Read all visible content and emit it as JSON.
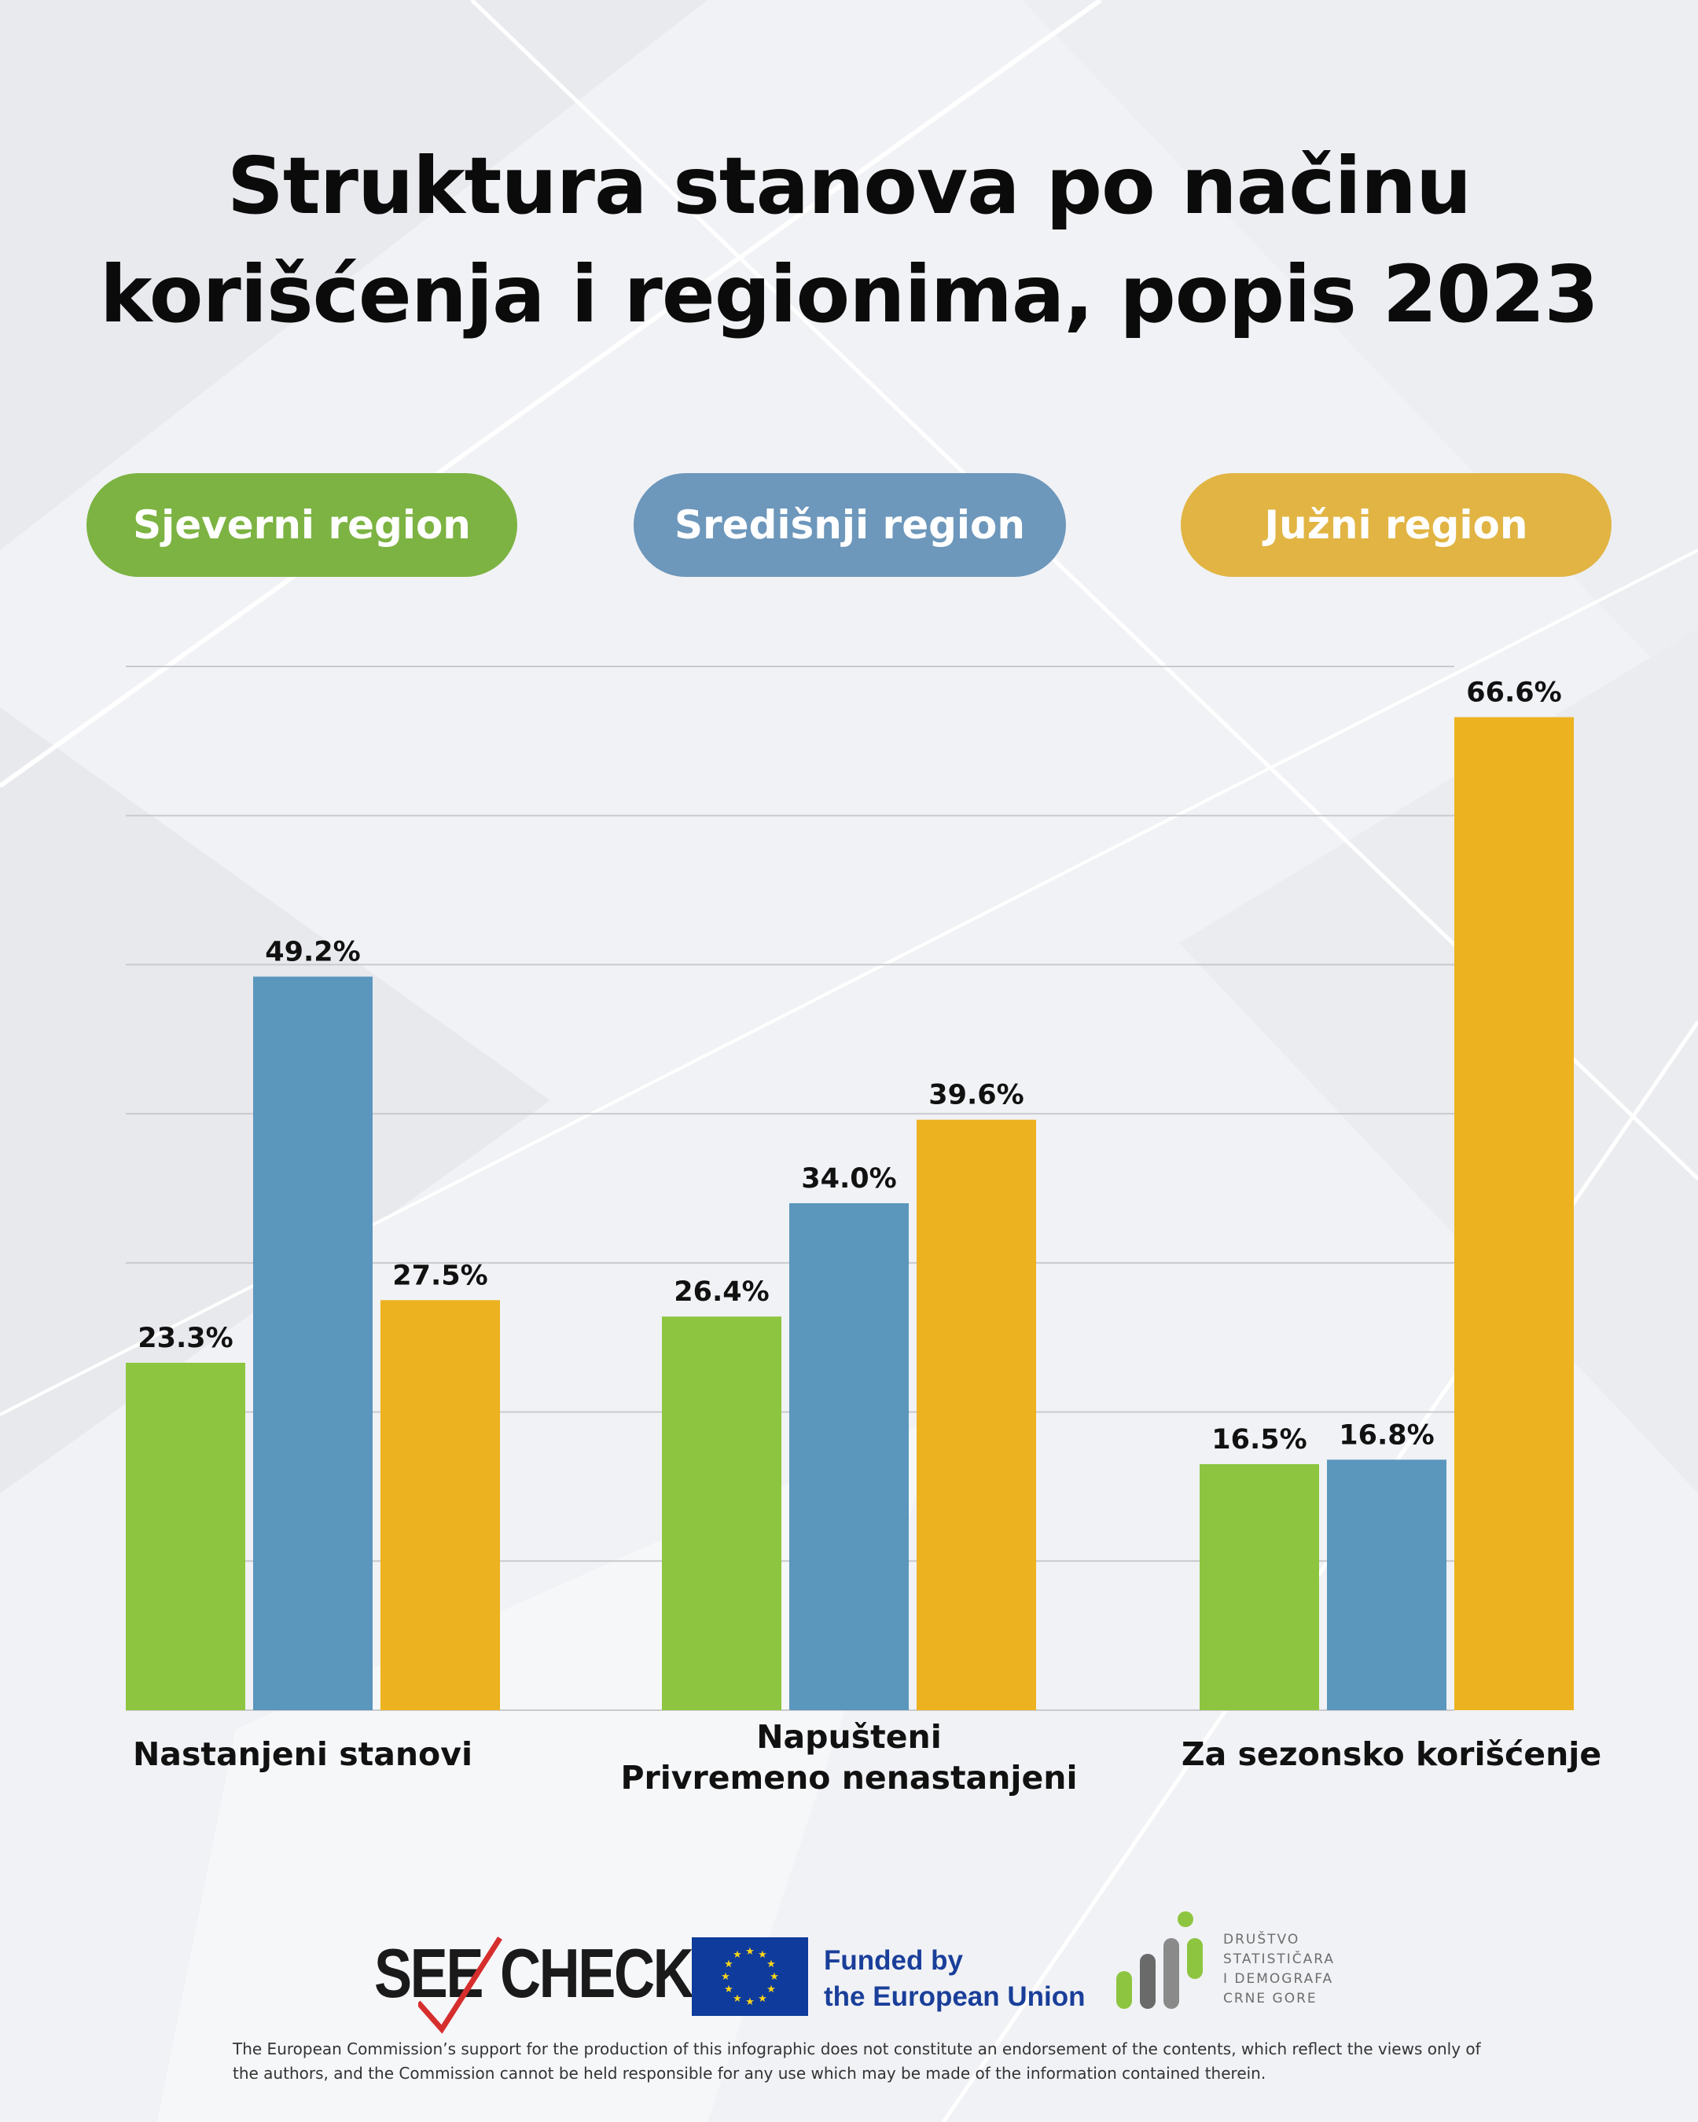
{
  "title": {
    "line1": "Struktura stanova po načinu",
    "line2": "korišćenja i regionima, popis 2023"
  },
  "legend": [
    {
      "label": "Sjeverni region",
      "color": "#7cb342"
    },
    {
      "label": "Središnji region",
      "color": "#6d97bb"
    },
    {
      "label": "Južni region",
      "color": "#e1b443"
    }
  ],
  "chart_data": {
    "type": "bar",
    "categories": [
      "Nastanjeni stanovi",
      "Napušteni\nPrivremeno nenastanjeni",
      "Za sezonsko korišćenje"
    ],
    "category_lines": [
      [
        "Nastanjeni stanovi"
      ],
      [
        "Napušteni",
        "Privremeno nenastanjeni"
      ],
      [
        "Za sezonsko korišćenje"
      ]
    ],
    "series": [
      {
        "name": "Sjeverni region",
        "color": "#8dc540",
        "values": [
          23.3,
          26.4,
          16.5
        ],
        "labels": [
          "23.3%",
          "26.4%",
          "16.5%"
        ]
      },
      {
        "name": "Središnji region",
        "color": "#5b96bd",
        "values": [
          49.2,
          34.0,
          16.8
        ],
        "labels": [
          "49.2%",
          "34.0%",
          "16.8%"
        ]
      },
      {
        "name": "Južni region",
        "color": "#ecb21f",
        "values": [
          27.5,
          39.6,
          66.6
        ],
        "labels": [
          "27.5%",
          "39.6%",
          "66.6%"
        ]
      }
    ],
    "ylim": [
      0,
      70
    ],
    "grid": true,
    "legend_position": "top"
  },
  "footer": {
    "logo_see": "SEE",
    "logo_check": "CHECK",
    "eu_line1": "Funded by",
    "eu_line2": "the European Union",
    "org_lines": [
      "DRUŠTVO",
      "STATISTIČARA",
      "I DEMOGRAFA",
      "CRNE GORE"
    ],
    "disclaimer": "The European Commission’s support for the production of this infographic does not constitute an endorsement of the contents, which reflect the views only of the authors, and the Commission cannot be held responsible for any use which may be made of the information contained therein."
  }
}
